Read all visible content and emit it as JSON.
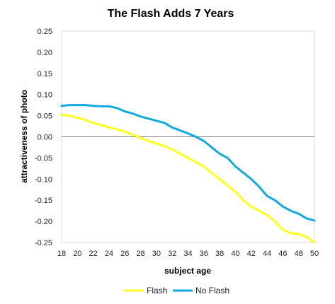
{
  "chart_data": {
    "type": "line",
    "title": "The Flash Adds 7 Years",
    "xlabel": "subject age",
    "ylabel": "attractiveness of photo",
    "xlim": [
      18,
      50
    ],
    "ylim": [
      -0.25,
      0.25
    ],
    "x_ticks": [
      "18",
      "20",
      "22",
      "24",
      "26",
      "28",
      "30",
      "32",
      "34",
      "36",
      "38",
      "40",
      "42",
      "44",
      "46",
      "48",
      "50"
    ],
    "y_ticks": [
      "0.25",
      "0.20",
      "0.15",
      "0.10",
      "0.05",
      "0.00",
      "-0.05",
      "-0.10",
      "-0.15",
      "-0.20",
      "-0.25"
    ],
    "grid": false,
    "legend_position": "bottom",
    "x": [
      18,
      19,
      20,
      21,
      22,
      23,
      24,
      25,
      26,
      27,
      28,
      29,
      30,
      31,
      32,
      33,
      34,
      35,
      36,
      37,
      38,
      39,
      40,
      41,
      42,
      43,
      44,
      45,
      46,
      47,
      48,
      49,
      50
    ],
    "series": [
      {
        "name": "Flash",
        "color": "#FFFF1A",
        "values": [
          0.052,
          0.05,
          0.045,
          0.04,
          0.033,
          0.028,
          0.022,
          0.018,
          0.012,
          0.005,
          -0.003,
          -0.01,
          -0.016,
          -0.022,
          -0.03,
          -0.04,
          -0.05,
          -0.06,
          -0.07,
          -0.085,
          -0.1,
          -0.115,
          -0.13,
          -0.15,
          -0.165,
          -0.175,
          -0.185,
          -0.2,
          -0.22,
          -0.228,
          -0.23,
          -0.237,
          -0.25
        ]
      },
      {
        "name": "No Flash",
        "color": "#10AAE0",
        "values": [
          0.073,
          0.075,
          0.075,
          0.075,
          0.073,
          0.072,
          0.072,
          0.068,
          0.06,
          0.055,
          0.048,
          0.043,
          0.038,
          0.033,
          0.022,
          0.015,
          0.008,
          0.0,
          -0.01,
          -0.025,
          -0.04,
          -0.05,
          -0.07,
          -0.085,
          -0.1,
          -0.118,
          -0.14,
          -0.15,
          -0.165,
          -0.175,
          -0.182,
          -0.193,
          -0.198
        ]
      }
    ]
  }
}
